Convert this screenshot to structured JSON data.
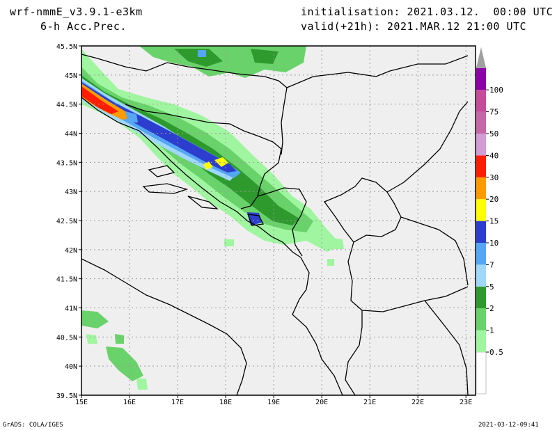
{
  "header": {
    "model": "wrf-nmmE_v3.9.1-e3km",
    "field": "6-h Acc.Prec.",
    "init_label": "initialisation:",
    "init_value": "2021.03.12.  00:00 UTC",
    "valid_label": "valid(+21h):",
    "valid_value": "2021.MAR.12 21:00 UTC"
  },
  "map": {
    "lat_ticks": [
      "45.5N",
      "45N",
      "44.5N",
      "44N",
      "43.5N",
      "43N",
      "42.5N",
      "42N",
      "41.5N",
      "41N",
      "40.5N",
      "40N",
      "39.5N"
    ],
    "lon_ticks": [
      "15E",
      "16E",
      "17E",
      "18E",
      "19E",
      "20E",
      "21E",
      "22E",
      "23E"
    ],
    "lat_values": [
      45.5,
      45,
      44.5,
      44,
      43.5,
      43,
      42.5,
      42,
      41.5,
      41,
      40.5,
      40,
      39.5
    ],
    "lon_values": [
      15,
      16,
      17,
      18,
      19,
      20,
      21,
      22,
      23
    ],
    "lat_range": [
      39.5,
      45.5
    ],
    "lon_range": [
      15,
      23.2
    ],
    "grid": true,
    "colors": {
      "land": "#efefef",
      "c0_5": "#a0f5a0",
      "c1": "#6ad26a",
      "c2": "#2e9a2e",
      "c5": "#9fd8fb",
      "c7": "#55a6f5",
      "c10": "#2d3ecf",
      "c15": "#ffff00",
      "c20": "#ff9a00",
      "c30": "#ff1d00",
      "c40": "#d29cd6",
      "c50": "#c667a8",
      "c75": "#c44c9a",
      "c100": "#8e00a8",
      "over": "#a0a0a0"
    }
  },
  "legend": {
    "labels": [
      "0.5",
      "1",
      "2",
      "5",
      "7",
      "10",
      "15",
      "20",
      "30",
      "40",
      "50",
      "75",
      "100"
    ]
  },
  "footer": {
    "left": "GrADS: COLA/IGES",
    "right": "2021-03-12-09:41"
  }
}
